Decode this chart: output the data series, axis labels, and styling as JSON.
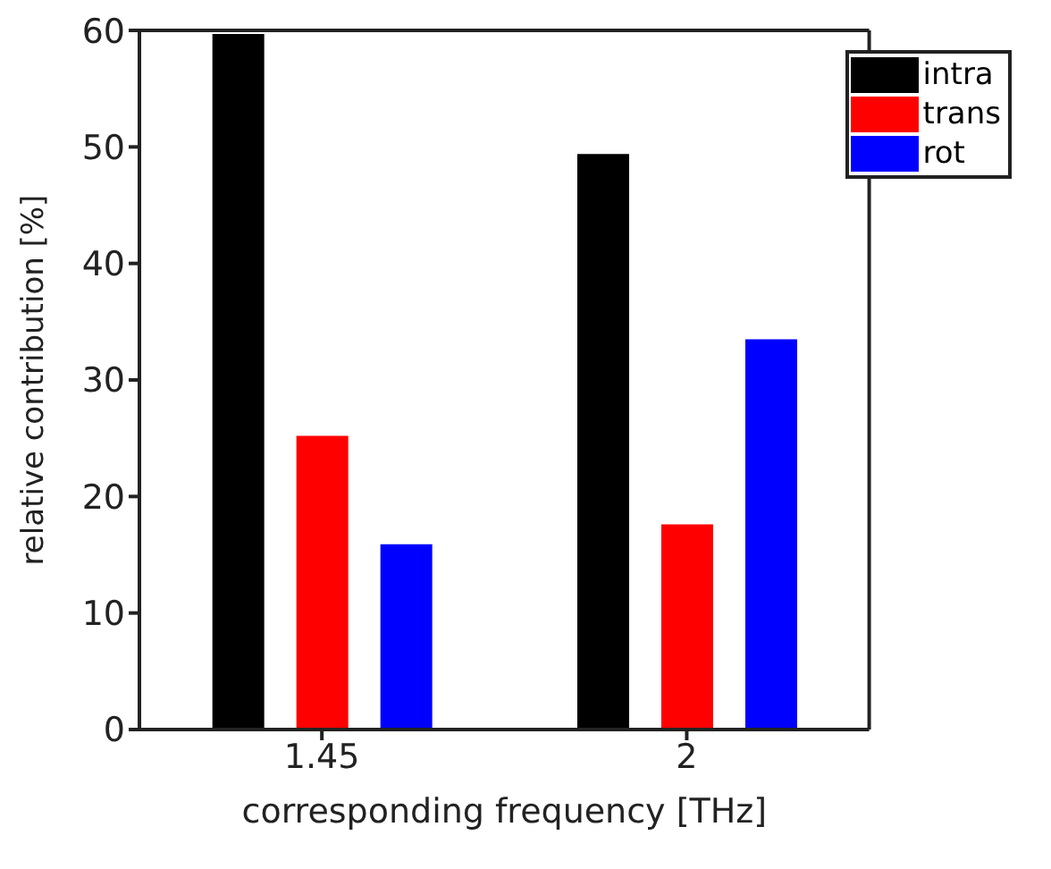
{
  "chart_data": {
    "type": "bar",
    "xlabel": "corresponding frequency [THz]",
    "ylabel": "relative contribution [%]",
    "categories": [
      "1.45",
      "2"
    ],
    "series": [
      {
        "name": "intra",
        "color": "#000000",
        "values": [
          59.7,
          49.4
        ]
      },
      {
        "name": "trans",
        "color": "#ff0000",
        "values": [
          25.2,
          17.6
        ]
      },
      {
        "name": "rot",
        "color": "#0000ff",
        "values": [
          15.9,
          33.5
        ]
      }
    ],
    "ylim": [
      0,
      60
    ],
    "yticks": [
      0,
      10,
      20,
      30,
      40,
      50,
      60
    ],
    "legend": "top right"
  }
}
